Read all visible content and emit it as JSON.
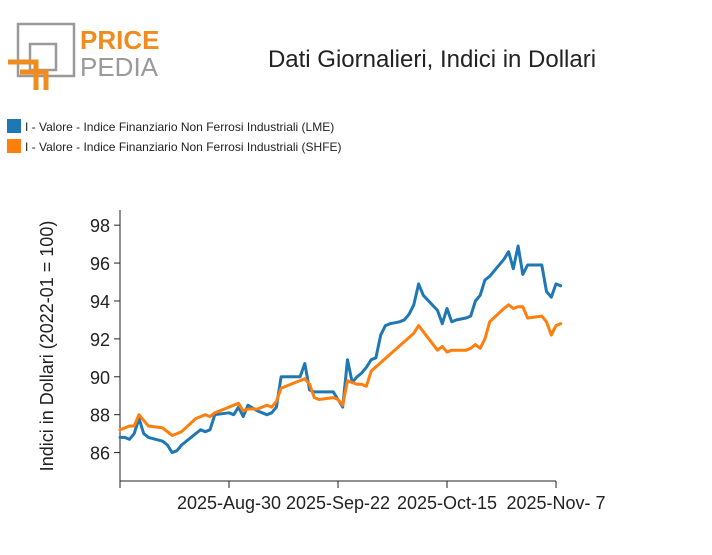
{
  "logo": {
    "word1": "PRICE",
    "word2": "PEDIA",
    "accent": "#f08c1e",
    "gray": "#9a9a9a"
  },
  "chart_data": {
    "type": "line",
    "title": "Dati Giornalieri, Indici in Dollari",
    "ylabel": "Indici in Dollari (2022-01 = 100)",
    "xlabel": "",
    "ylim": [
      84.5,
      98.8
    ],
    "yticks": [
      86,
      88,
      90,
      92,
      94,
      96,
      98
    ],
    "x_range": [
      "2025-08-07",
      "2025-11-07"
    ],
    "xticks": [
      {
        "date": "2025-08-07",
        "label": ""
      },
      {
        "date": "2025-08-30",
        "label": "2025-Aug-30"
      },
      {
        "date": "2025-09-22",
        "label": "2025-Sep-22"
      },
      {
        "date": "2025-10-15",
        "label": "2025-Oct-15"
      },
      {
        "date": "2025-11-07",
        "label": "2025-Nov- 7"
      }
    ],
    "legend_position": "top-left",
    "grid": false,
    "series": [
      {
        "name": "I - Valore - Indice Finanziario Non Ferrosi Industriali (LME)",
        "color": "#1f77b4",
        "points": [
          [
            "2025-08-07",
            86.8
          ],
          [
            "2025-08-08",
            86.8
          ],
          [
            "2025-08-09",
            86.7
          ],
          [
            "2025-08-10",
            87.0
          ],
          [
            "2025-08-11",
            87.8
          ],
          [
            "2025-08-12",
            87.0
          ],
          [
            "2025-08-13",
            86.8
          ],
          [
            "2025-08-16",
            86.6
          ],
          [
            "2025-08-17",
            86.4
          ],
          [
            "2025-08-18",
            86.0
          ],
          [
            "2025-08-19",
            86.1
          ],
          [
            "2025-08-20",
            86.4
          ],
          [
            "2025-08-23",
            87.0
          ],
          [
            "2025-08-24",
            87.2
          ],
          [
            "2025-08-25",
            87.1
          ],
          [
            "2025-08-26",
            87.2
          ],
          [
            "2025-08-27",
            88.0
          ],
          [
            "2025-08-30",
            88.1
          ],
          [
            "2025-08-31",
            88.0
          ],
          [
            "2025-09-01",
            88.4
          ],
          [
            "2025-09-02",
            87.9
          ],
          [
            "2025-09-03",
            88.5
          ],
          [
            "2025-09-05",
            88.2
          ],
          [
            "2025-09-06",
            88.1
          ],
          [
            "2025-09-07",
            88.0
          ],
          [
            "2025-09-08",
            88.1
          ],
          [
            "2025-09-09",
            88.4
          ],
          [
            "2025-09-10",
            90.0
          ],
          [
            "2025-09-13",
            90.0
          ],
          [
            "2025-09-14",
            90.0
          ],
          [
            "2025-09-15",
            90.7
          ],
          [
            "2025-09-16",
            89.3
          ],
          [
            "2025-09-17",
            89.2
          ],
          [
            "2025-09-20",
            89.2
          ],
          [
            "2025-09-21",
            89.2
          ],
          [
            "2025-09-22",
            88.8
          ],
          [
            "2025-09-23",
            88.4
          ],
          [
            "2025-09-24",
            90.9
          ],
          [
            "2025-09-25",
            89.7
          ],
          [
            "2025-09-26",
            90.0
          ],
          [
            "2025-09-27",
            90.2
          ],
          [
            "2025-09-28",
            90.5
          ],
          [
            "2025-09-29",
            90.9
          ],
          [
            "2025-09-30",
            91.0
          ],
          [
            "2025-10-01",
            92.2
          ],
          [
            "2025-10-02",
            92.7
          ],
          [
            "2025-10-03",
            92.8
          ],
          [
            "2025-10-05",
            92.9
          ],
          [
            "2025-10-06",
            93.0
          ],
          [
            "2025-10-07",
            93.3
          ],
          [
            "2025-10-08",
            93.8
          ],
          [
            "2025-10-09",
            94.9
          ],
          [
            "2025-10-10",
            94.3
          ],
          [
            "2025-10-13",
            93.5
          ],
          [
            "2025-10-14",
            92.8
          ],
          [
            "2025-10-15",
            93.6
          ],
          [
            "2025-10-16",
            92.9
          ],
          [
            "2025-10-17",
            93.0
          ],
          [
            "2025-10-19",
            93.1
          ],
          [
            "2025-10-20",
            93.2
          ],
          [
            "2025-10-21",
            94.0
          ],
          [
            "2025-10-22",
            94.3
          ],
          [
            "2025-10-23",
            95.1
          ],
          [
            "2025-10-24",
            95.3
          ],
          [
            "2025-10-27",
            96.2
          ],
          [
            "2025-10-28",
            96.6
          ],
          [
            "2025-10-29",
            95.7
          ],
          [
            "2025-10-30",
            96.9
          ],
          [
            "2025-10-31",
            95.4
          ],
          [
            "2025-11-01",
            95.9
          ],
          [
            "2025-11-04",
            95.9
          ],
          [
            "2025-11-05",
            94.5
          ],
          [
            "2025-11-06",
            94.2
          ],
          [
            "2025-11-07",
            94.9
          ],
          [
            "2025-11-08",
            94.8
          ]
        ]
      },
      {
        "name": "I - Valore - Indice Finanziario Non Ferrosi Industriali (SHFE)",
        "color": "#ff7f0e",
        "points": [
          [
            "2025-08-07",
            87.2
          ],
          [
            "2025-08-08",
            87.3
          ],
          [
            "2025-08-09",
            87.4
          ],
          [
            "2025-08-10",
            87.4
          ],
          [
            "2025-08-11",
            88.0
          ],
          [
            "2025-08-12",
            87.7
          ],
          [
            "2025-08-13",
            87.4
          ],
          [
            "2025-08-16",
            87.3
          ],
          [
            "2025-08-17",
            87.1
          ],
          [
            "2025-08-18",
            86.9
          ],
          [
            "2025-08-19",
            87.0
          ],
          [
            "2025-08-20",
            87.1
          ],
          [
            "2025-08-23",
            87.8
          ],
          [
            "2025-08-24",
            87.9
          ],
          [
            "2025-08-25",
            88.0
          ],
          [
            "2025-08-26",
            87.9
          ],
          [
            "2025-08-27",
            88.1
          ],
          [
            "2025-08-30",
            88.4
          ],
          [
            "2025-08-31",
            88.5
          ],
          [
            "2025-09-01",
            88.6
          ],
          [
            "2025-09-02",
            88.2
          ],
          [
            "2025-09-03",
            88.3
          ],
          [
            "2025-09-05",
            88.3
          ],
          [
            "2025-09-06",
            88.4
          ],
          [
            "2025-09-07",
            88.5
          ],
          [
            "2025-09-08",
            88.4
          ],
          [
            "2025-09-09",
            88.7
          ],
          [
            "2025-09-10",
            89.4
          ],
          [
            "2025-09-13",
            89.7
          ],
          [
            "2025-09-14",
            89.8
          ],
          [
            "2025-09-15",
            89.9
          ],
          [
            "2025-09-16",
            89.6
          ],
          [
            "2025-09-17",
            88.9
          ],
          [
            "2025-09-18",
            88.8
          ],
          [
            "2025-09-21",
            88.9
          ],
          [
            "2025-09-22",
            88.8
          ],
          [
            "2025-09-23",
            88.5
          ],
          [
            "2025-09-24",
            89.8
          ],
          [
            "2025-09-25",
            89.7
          ],
          [
            "2025-09-26",
            89.6
          ],
          [
            "2025-09-27",
            89.6
          ],
          [
            "2025-09-28",
            89.5
          ],
          [
            "2025-09-29",
            90.3
          ],
          [
            "2025-10-08",
            92.3
          ],
          [
            "2025-10-09",
            92.7
          ],
          [
            "2025-10-13",
            91.4
          ],
          [
            "2025-10-14",
            91.6
          ],
          [
            "2025-10-15",
            91.3
          ],
          [
            "2025-10-16",
            91.4
          ],
          [
            "2025-10-19",
            91.4
          ],
          [
            "2025-10-20",
            91.5
          ],
          [
            "2025-10-21",
            91.7
          ],
          [
            "2025-10-22",
            91.5
          ],
          [
            "2025-10-23",
            92.0
          ],
          [
            "2025-10-24",
            92.9
          ],
          [
            "2025-10-27",
            93.6
          ],
          [
            "2025-10-28",
            93.8
          ],
          [
            "2025-10-29",
            93.6
          ],
          [
            "2025-10-30",
            93.7
          ],
          [
            "2025-10-31",
            93.7
          ],
          [
            "2025-11-01",
            93.1
          ],
          [
            "2025-11-04",
            93.2
          ],
          [
            "2025-11-05",
            92.9
          ],
          [
            "2025-11-06",
            92.2
          ],
          [
            "2025-11-07",
            92.7
          ],
          [
            "2025-11-08",
            92.8
          ]
        ]
      }
    ]
  }
}
